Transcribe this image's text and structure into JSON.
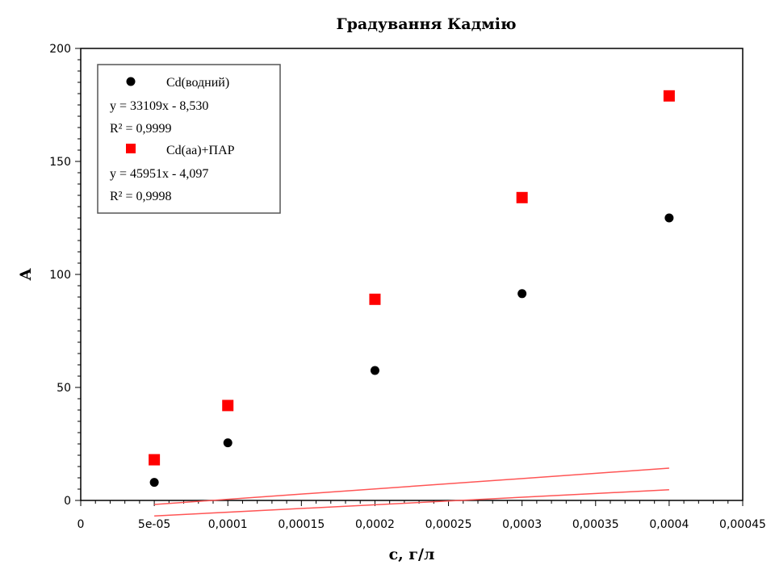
{
  "chart_data": {
    "type": "scatter",
    "title": "Градування Кадмію",
    "xlabel": "c, г/л",
    "ylabel": "A",
    "xlim": [
      0,
      0.00045
    ],
    "ylim": [
      0,
      200
    ],
    "x_ticks": [
      0,
      5e-05,
      0.0001,
      0.00015,
      0.0002,
      0.00025,
      0.0003,
      0.00035,
      0.0004,
      0.00045
    ],
    "x_tick_labels": [
      "0",
      "5e-05",
      "0,0001",
      "0,00015",
      "0,0002",
      "0,00025",
      "0,0003",
      "0,00035",
      "0,0004",
      "0,00045"
    ],
    "y_ticks": [
      0,
      50,
      100,
      150,
      200
    ],
    "y_tick_labels": [
      "0",
      "50",
      "100",
      "150",
      "200"
    ],
    "grid": false,
    "legend_position": "top-left",
    "line_color": "#ff5555",
    "series": [
      {
        "name": "Cd(водний)",
        "marker": "circle",
        "color": "#000000",
        "x": [
          5e-05,
          0.0001,
          0.0002,
          0.0003,
          0.0004
        ],
        "y": [
          8,
          25.5,
          57.5,
          91.5,
          125
        ],
        "fit": {
          "slope": 33109,
          "intercept": -8.53
        },
        "equation": "y = 33109x - 8,530",
        "r2": "R² = 0,9999"
      },
      {
        "name": "Cd(aa)+ПАР",
        "marker": "square",
        "color": "#ff0000",
        "x": [
          5e-05,
          0.0001,
          0.0002,
          0.0003,
          0.0004
        ],
        "y": [
          18,
          42,
          89,
          134,
          179
        ],
        "fit": {
          "slope": 45951,
          "intercept": -4.097
        },
        "equation": "y = 45951x - 4,097",
        "r2": "R² = 0,9998"
      }
    ]
  }
}
